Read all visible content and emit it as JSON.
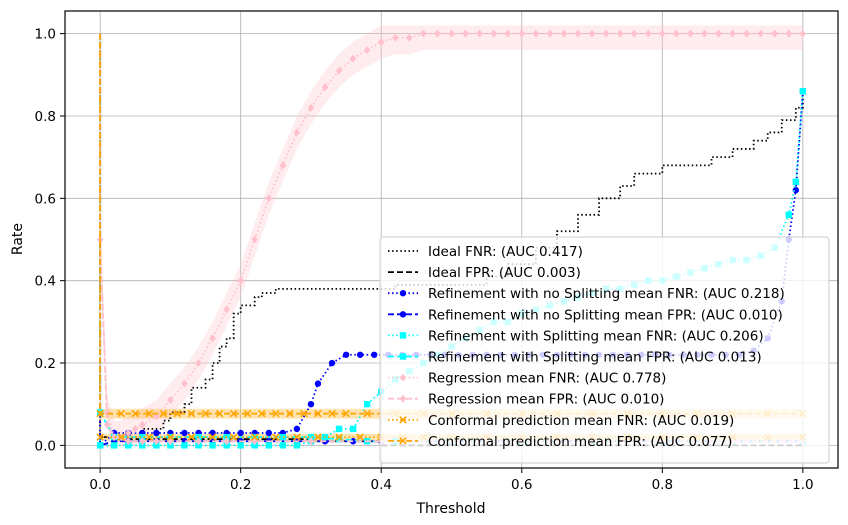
{
  "chart_data": {
    "type": "line",
    "title": "",
    "xlabel": "Threshold",
    "ylabel": "Rate",
    "xlim": [
      -0.05,
      1.05
    ],
    "ylim": [
      -0.055,
      1.055
    ],
    "xticks": [
      "0.0",
      "0.2",
      "0.4",
      "0.6",
      "0.8",
      "1.0"
    ],
    "yticks": [
      "0.0",
      "0.2",
      "0.4",
      "0.6",
      "0.8",
      "1.0"
    ],
    "grid": true,
    "legend_position": "lower-right",
    "series": [
      {
        "name": "Ideal FNR: (AUC 0.417)",
        "color": "#000000",
        "dash": "dot",
        "marker": "none",
        "step": true,
        "x": [
          0,
          0.0,
          0.02,
          0.06,
          0.09,
          0.1,
          0.12,
          0.13,
          0.15,
          0.16,
          0.17,
          0.18,
          0.19,
          0.2,
          0.22,
          0.23,
          0.25,
          0.4,
          0.42,
          0.55,
          0.58,
          0.62,
          0.65,
          0.68,
          0.71,
          0.74,
          0.76,
          0.8,
          0.87,
          0.9,
          0.93,
          0.95,
          0.97,
          0.99,
          1.0
        ],
        "y": [
          1.0,
          0.0,
          0.02,
          0.04,
          0.06,
          0.08,
          0.1,
          0.14,
          0.16,
          0.2,
          0.24,
          0.26,
          0.32,
          0.34,
          0.36,
          0.37,
          0.38,
          0.38,
          0.39,
          0.41,
          0.44,
          0.48,
          0.52,
          0.56,
          0.6,
          0.63,
          0.66,
          0.68,
          0.7,
          0.72,
          0.74,
          0.76,
          0.79,
          0.82,
          0.85
        ]
      },
      {
        "name": "Ideal FPR: (AUC 0.003)",
        "color": "#000000",
        "dash": "dash",
        "marker": "none",
        "step": true,
        "x": [
          0,
          0.0,
          0.02,
          0.3,
          0.4,
          1.0
        ],
        "y": [
          1.0,
          0.02,
          0.015,
          0.01,
          0.0,
          0.0
        ]
      },
      {
        "name": "Refinement with no Splitting mean FNR: (AUC 0.218)",
        "color": "#0000ff",
        "dash": "dot",
        "marker": "circle",
        "x": [
          0,
          0.0,
          0.02,
          0.04,
          0.06,
          0.08,
          0.1,
          0.12,
          0.14,
          0.16,
          0.18,
          0.2,
          0.22,
          0.24,
          0.26,
          0.28,
          0.3,
          0.31,
          0.33,
          0.35,
          0.37,
          0.39,
          0.41,
          0.43,
          0.45,
          0.47,
          0.49,
          0.51,
          0.53,
          0.55,
          0.57,
          0.59,
          0.61,
          0.63,
          0.65,
          0.67,
          0.69,
          0.71,
          0.73,
          0.75,
          0.77,
          0.79,
          0.81,
          0.83,
          0.85,
          0.87,
          0.89,
          0.91,
          0.93,
          0.95,
          0.97,
          0.98,
          0.99,
          1.0
        ],
        "y": [
          1.0,
          0.0,
          0.03,
          0.03,
          0.03,
          0.03,
          0.03,
          0.03,
          0.03,
          0.03,
          0.03,
          0.03,
          0.03,
          0.03,
          0.03,
          0.04,
          0.1,
          0.15,
          0.2,
          0.22,
          0.22,
          0.22,
          0.22,
          0.22,
          0.22,
          0.22,
          0.22,
          0.22,
          0.22,
          0.22,
          0.22,
          0.22,
          0.22,
          0.22,
          0.22,
          0.22,
          0.22,
          0.22,
          0.22,
          0.22,
          0.22,
          0.22,
          0.22,
          0.22,
          0.22,
          0.22,
          0.22,
          0.22,
          0.23,
          0.26,
          0.35,
          0.5,
          0.62,
          0.86
        ]
      },
      {
        "name": "Refinement with no Splitting mean FPR: (AUC 0.010)",
        "color": "#0000ff",
        "dash": "dash",
        "marker": "circle",
        "x": [
          0,
          0.0,
          0.02,
          0.04,
          0.08,
          0.12,
          0.16,
          0.2,
          0.24,
          0.28,
          0.32,
          0.36,
          0.4,
          0.5,
          0.6,
          0.7,
          0.8,
          0.9,
          1.0
        ],
        "y": [
          1.0,
          0.0,
          0.01,
          0.01,
          0.01,
          0.01,
          0.01,
          0.01,
          0.01,
          0.01,
          0.01,
          0.01,
          0.01,
          0.01,
          0.01,
          0.01,
          0.01,
          0.01,
          0.01
        ]
      },
      {
        "name": "Refinement with Splitting mean FNR: (AUC 0.206)",
        "color": "#00ffff",
        "dash": "dot",
        "marker": "square",
        "x": [
          0,
          0.0,
          0.02,
          0.04,
          0.06,
          0.08,
          0.1,
          0.12,
          0.14,
          0.16,
          0.18,
          0.2,
          0.22,
          0.24,
          0.26,
          0.28,
          0.3,
          0.32,
          0.34,
          0.36,
          0.38,
          0.4,
          0.42,
          0.44,
          0.46,
          0.48,
          0.5,
          0.52,
          0.54,
          0.56,
          0.58,
          0.6,
          0.62,
          0.64,
          0.66,
          0.68,
          0.7,
          0.72,
          0.74,
          0.76,
          0.78,
          0.8,
          0.82,
          0.84,
          0.86,
          0.88,
          0.9,
          0.92,
          0.94,
          0.96,
          0.98,
          0.99,
          1.0
        ],
        "y": [
          1.0,
          0.0,
          0.0,
          0.0,
          0.0,
          0.0,
          0.0,
          0.0,
          0.0,
          0.0,
          0.0,
          0.0,
          0.0,
          0.0,
          0.0,
          0.0,
          0.01,
          0.02,
          0.04,
          0.04,
          0.1,
          0.13,
          0.16,
          0.18,
          0.2,
          0.22,
          0.24,
          0.26,
          0.28,
          0.3,
          0.3,
          0.32,
          0.33,
          0.34,
          0.35,
          0.36,
          0.37,
          0.38,
          0.38,
          0.39,
          0.4,
          0.4,
          0.41,
          0.42,
          0.43,
          0.44,
          0.45,
          0.45,
          0.46,
          0.48,
          0.56,
          0.64,
          0.86
        ]
      },
      {
        "name": "Refinement with Splitting mean FPR: (AUC 0.013)",
        "color": "#00ffff",
        "dash": "dash",
        "marker": "square",
        "x": [
          0,
          0.0,
          0.02,
          0.06,
          0.1,
          0.14,
          0.18,
          0.22,
          0.26,
          0.3,
          0.34,
          0.38,
          0.42,
          0.5,
          0.6,
          0.7,
          0.8,
          0.9,
          1.0
        ],
        "y": [
          1.0,
          0.08,
          0.02,
          0.02,
          0.02,
          0.02,
          0.02,
          0.02,
          0.02,
          0.02,
          0.015,
          0.01,
          0.01,
          0.01,
          0.01,
          0.01,
          0.01,
          0.01,
          0.01
        ]
      },
      {
        "name": "Regression mean FNR: (AUC 0.778)",
        "color": "#ffc0cb",
        "dash": "dot",
        "marker": "diamond",
        "band": 0.04,
        "x": [
          0,
          0.0,
          0.01,
          0.02,
          0.03,
          0.04,
          0.05,
          0.06,
          0.08,
          0.1,
          0.12,
          0.14,
          0.16,
          0.18,
          0.2,
          0.22,
          0.24,
          0.26,
          0.28,
          0.3,
          0.32,
          0.34,
          0.36,
          0.38,
          0.4,
          0.42,
          0.44,
          0.46,
          0.48,
          0.5,
          0.52,
          0.54,
          0.56,
          0.58,
          0.6,
          0.62,
          0.64,
          0.66,
          0.68,
          0.7,
          0.72,
          0.74,
          0.76,
          0.78,
          0.8,
          0.82,
          0.84,
          0.86,
          0.88,
          0.9,
          0.92,
          0.94,
          0.96,
          0.98,
          1.0
        ],
        "y": [
          0.5,
          0.5,
          0.08,
          0.02,
          0.02,
          0.03,
          0.04,
          0.05,
          0.07,
          0.11,
          0.15,
          0.2,
          0.26,
          0.33,
          0.4,
          0.5,
          0.6,
          0.68,
          0.76,
          0.82,
          0.87,
          0.91,
          0.94,
          0.96,
          0.98,
          0.99,
          0.99,
          1.0,
          1.0,
          1.0,
          1.0,
          1.0,
          1.0,
          1.0,
          1.0,
          1.0,
          1.0,
          1.0,
          1.0,
          1.0,
          1.0,
          1.0,
          1.0,
          1.0,
          1.0,
          1.0,
          1.0,
          1.0,
          1.0,
          1.0,
          1.0,
          1.0,
          1.0,
          1.0,
          1.0
        ]
      },
      {
        "name": "Regression mean FPR: (AUC 0.010)",
        "color": "#ffc0cb",
        "dash": "dash",
        "marker": "diamond",
        "x": [
          0,
          0.0,
          0.01,
          0.02,
          0.04,
          0.06,
          0.08,
          0.1,
          0.14,
          0.18,
          0.22,
          0.3,
          0.4,
          0.5,
          0.6,
          0.7,
          0.8,
          0.9,
          1.0
        ],
        "y": [
          1.0,
          0.5,
          0.05,
          0.02,
          0.01,
          0.01,
          0.01,
          0.01,
          0.01,
          0.01,
          0.01,
          0.01,
          0.01,
          0.01,
          0.01,
          0.01,
          0.01,
          0.01,
          0.01
        ]
      },
      {
        "name": "Conformal prediction mean FNR: (AUC 0.019)",
        "color": "#ffa500",
        "dash": "dot",
        "marker": "x",
        "band": 0.008,
        "x": [
          0,
          0.0,
          0.03,
          0.07,
          0.1,
          0.13,
          0.16,
          0.19,
          0.22,
          0.25,
          0.28,
          0.31,
          0.34,
          0.37,
          0.4,
          0.43,
          0.46,
          0.5,
          0.55,
          0.6,
          0.65,
          0.7,
          0.75,
          0.8,
          0.85,
          0.9,
          0.95,
          1.0
        ],
        "y": [
          1.0,
          0.02,
          0.02,
          0.02,
          0.02,
          0.02,
          0.02,
          0.02,
          0.02,
          0.02,
          0.02,
          0.02,
          0.02,
          0.02,
          0.02,
          0.02,
          0.02,
          0.02,
          0.02,
          0.02,
          0.02,
          0.02,
          0.02,
          0.02,
          0.02,
          0.02,
          0.02,
          0.02
        ]
      },
      {
        "name": "Conformal prediction mean FPR: (AUC 0.077)",
        "color": "#ffa500",
        "dash": "dash",
        "marker": "x",
        "band": 0.012,
        "x": [
          0,
          0.0,
          0.03,
          0.05,
          0.07,
          0.09,
          0.11,
          0.13,
          0.15,
          0.17,
          0.19,
          0.21,
          0.23,
          0.25,
          0.27,
          0.29,
          0.31,
          0.33,
          0.35,
          0.38,
          0.42,
          0.46,
          0.5,
          0.55,
          0.6,
          0.65,
          0.7,
          0.75,
          0.8,
          0.85,
          0.9,
          0.95,
          1.0
        ],
        "y": [
          1.0,
          0.077,
          0.077,
          0.077,
          0.077,
          0.077,
          0.077,
          0.077,
          0.077,
          0.077,
          0.077,
          0.077,
          0.077,
          0.077,
          0.077,
          0.077,
          0.077,
          0.077,
          0.077,
          0.077,
          0.077,
          0.077,
          0.077,
          0.077,
          0.077,
          0.077,
          0.077,
          0.077,
          0.077,
          0.077,
          0.077,
          0.077,
          0.077
        ]
      }
    ]
  }
}
